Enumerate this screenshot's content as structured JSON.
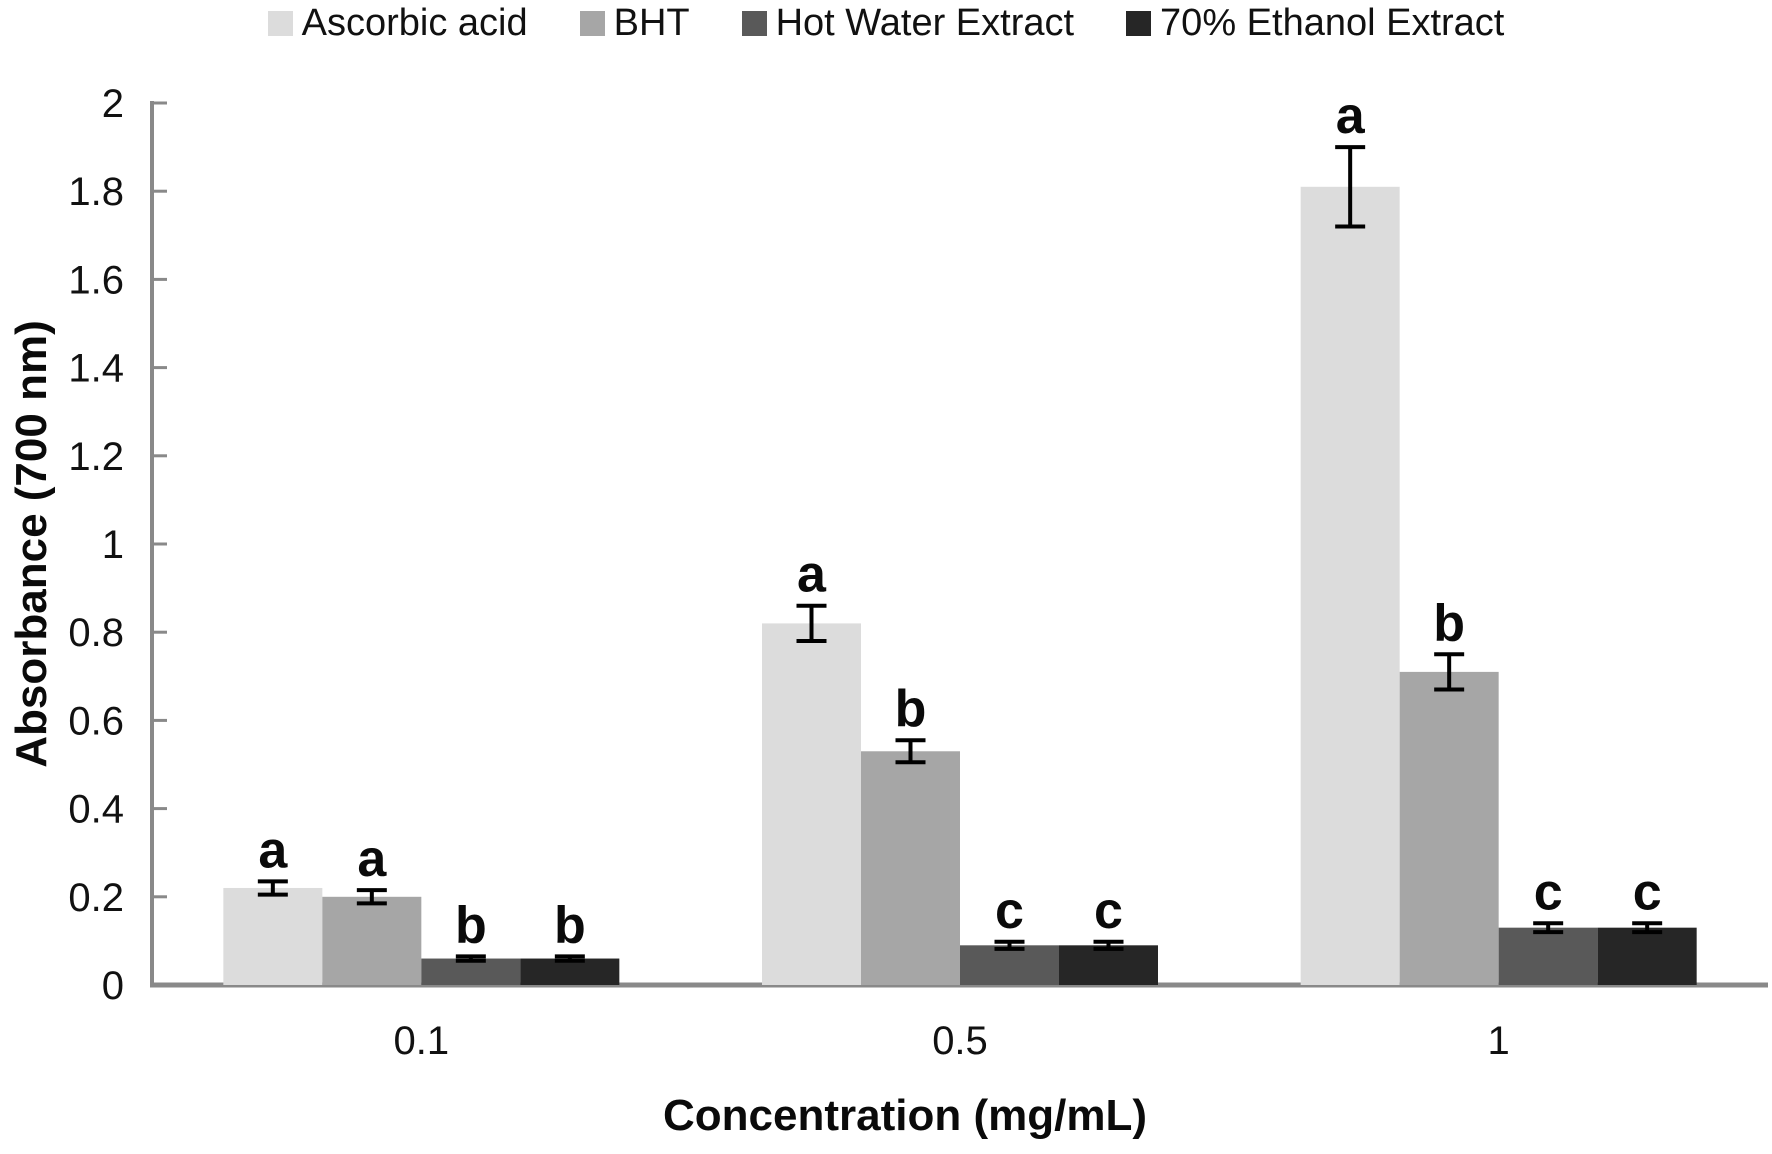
{
  "chart_data": {
    "type": "bar",
    "title": "",
    "xlabel": "Concentration (mg/mL)",
    "ylabel": "Absorbance (700 nm)",
    "ylim": [
      0,
      2
    ],
    "ytick_step": 0.2,
    "ytick_labels": [
      "0",
      "0.2",
      "0.4",
      "0.6",
      "0.8",
      "1",
      "1.2",
      "1.4",
      "1.6",
      "1.8",
      "2"
    ],
    "grid": false,
    "legend_position": "top",
    "categories": [
      "0.1",
      "0.5",
      "1"
    ],
    "series": [
      {
        "name": "Ascorbic acid",
        "color": "#dcdcdc",
        "values": [
          0.22,
          0.82,
          1.81
        ],
        "errors": [
          0.015,
          0.04,
          0.09
        ],
        "letters": [
          "a",
          "a",
          "a"
        ]
      },
      {
        "name": "BHT",
        "color": "#a6a6a6",
        "values": [
          0.2,
          0.53,
          0.71
        ],
        "errors": [
          0.015,
          0.025,
          0.04
        ],
        "letters": [
          "a",
          "b",
          "b"
        ]
      },
      {
        "name": "Hot Water Extract",
        "color": "#595959",
        "values": [
          0.06,
          0.09,
          0.13
        ],
        "errors": [
          0.005,
          0.008,
          0.01
        ],
        "letters": [
          "b",
          "c",
          "c"
        ]
      },
      {
        "name": "70% Ethanol Extract",
        "color": "#262626",
        "values": [
          0.06,
          0.09,
          0.13
        ],
        "errors": [
          0.005,
          0.008,
          0.01
        ],
        "letters": [
          "b",
          "c",
          "c"
        ]
      }
    ],
    "error_bar_color": "#000000",
    "axis_color": "#898989",
    "text_color": "#111111"
  }
}
